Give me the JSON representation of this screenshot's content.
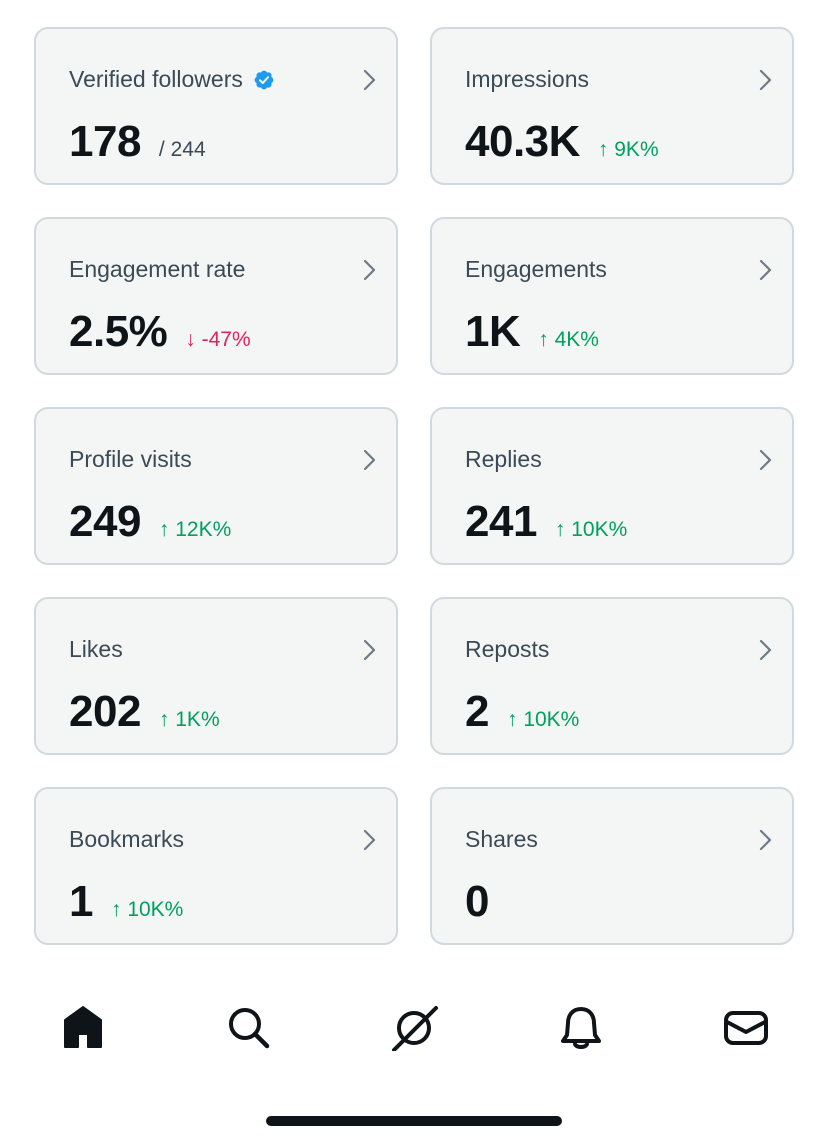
{
  "cards": [
    {
      "label": "Verified followers",
      "value": "178",
      "sub": "/ 244",
      "delta": "",
      "direction": ""
    },
    {
      "label": "Impressions",
      "value": "40.3K",
      "sub": "",
      "delta": "↑ 9K%",
      "direction": "up"
    },
    {
      "label": "Engagement rate",
      "value": "2.5%",
      "sub": "",
      "delta": "↓ -47%",
      "direction": "down"
    },
    {
      "label": "Engagements",
      "value": "1K",
      "sub": "",
      "delta": "↑ 4K%",
      "direction": "up"
    },
    {
      "label": "Profile visits",
      "value": "249",
      "sub": "",
      "delta": "↑ 12K%",
      "direction": "up"
    },
    {
      "label": "Replies",
      "value": "241",
      "sub": "",
      "delta": "↑ 10K%",
      "direction": "up"
    },
    {
      "label": "Likes",
      "value": "202",
      "sub": "",
      "delta": "↑ 1K%",
      "direction": "up"
    },
    {
      "label": "Reposts",
      "value": "2",
      "sub": "",
      "delta": "↑ 10K%",
      "direction": "up"
    },
    {
      "label": "Bookmarks",
      "value": "1",
      "sub": "",
      "delta": "↑ 10K%",
      "direction": "up"
    },
    {
      "label": "Shares",
      "value": "0",
      "sub": "",
      "delta": "",
      "direction": ""
    }
  ],
  "icons": {
    "verified": "verified-badge-icon",
    "chevron": "chevron-right-icon",
    "nav": [
      "home-icon",
      "search-icon",
      "grok-icon",
      "notifications-bell-icon",
      "messages-envelope-icon"
    ]
  },
  "colors": {
    "verified": "#1d9bf0",
    "up": "#00a05e",
    "down": "#e0245e",
    "card_bg": "#f4f5f5",
    "card_border": "#cfd9de"
  }
}
